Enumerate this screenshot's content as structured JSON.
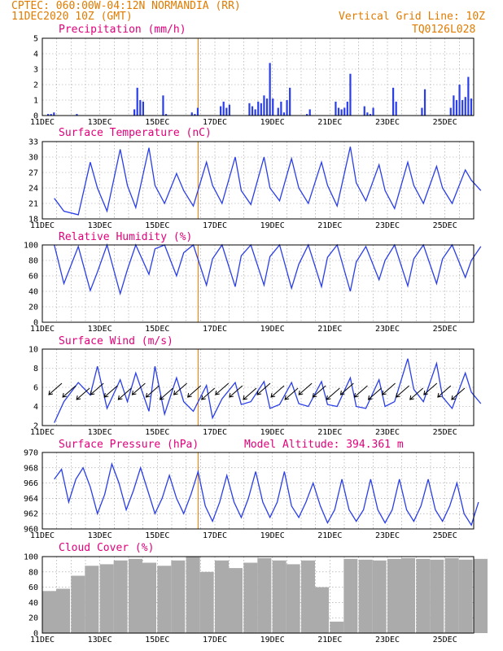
{
  "header": {
    "line1": "CPTEC:  060:00W-04:12N  NORMANDIA (RR)",
    "line2": "11DEC2020 10Z (GMT)",
    "right1": "Vertical Grid Line: 10Z",
    "right2": "TQ0126L028"
  },
  "colors": {
    "header": "#e07b00",
    "panel_title": "#e0007a",
    "series": "#2a3ee8",
    "cloud": "#ababab",
    "vertical_line": "#e07b00"
  },
  "date_labels": [
    "11DEC",
    "13DEC",
    "15DEC",
    "17DEC",
    "19DEC",
    "21DEC",
    "23DEC",
    "25DEC"
  ],
  "chart_data": [
    {
      "type": "bar",
      "title": "Precipitation (mm/h)",
      "ylim": [
        0,
        5
      ],
      "yticks": [
        0,
        1,
        2,
        3,
        4,
        5
      ],
      "grid": true,
      "x": [
        "11DEC",
        "11DEC",
        "11DEC",
        "12DEC",
        "14DEC",
        "14DEC",
        "14DEC",
        "14DEC",
        "15DEC",
        "15DEC",
        "16DEC",
        "16DEC",
        "16DEC",
        "17DEC",
        "17DEC",
        "17DEC",
        "17DEC",
        "18DEC",
        "18DEC",
        "18DEC",
        "18DEC",
        "18DEC",
        "18DEC",
        "18DEC",
        "18DEC",
        "18DEC",
        "19DEC",
        "19DEC",
        "19DEC",
        "19DEC",
        "19DEC",
        "20DEC",
        "20DEC",
        "21DEC",
        "21DEC",
        "21DEC",
        "21DEC",
        "21DEC",
        "21DEC",
        "22DEC",
        "22DEC",
        "22DEC",
        "22DEC",
        "23DEC",
        "23DEC",
        "24DEC",
        "24DEC",
        "25DEC",
        "25DEC",
        "25DEC",
        "25DEC",
        "25DEC",
        "25DEC",
        "25DEC",
        "25DEC"
      ],
      "values": [
        0.1,
        0.1,
        0.2,
        0.1,
        0.4,
        1.8,
        1.0,
        0.9,
        1.3,
        0.1,
        0.2,
        0.1,
        0.5,
        0.6,
        0.9,
        0.5,
        0.7,
        0.8,
        0.6,
        0.4,
        0.9,
        0.8,
        1.3,
        1.1,
        3.4,
        1.1,
        0.5,
        0.9,
        0.2,
        1.0,
        1.8,
        0.1,
        0.4,
        0.9,
        0.5,
        0.4,
        0.5,
        0.9,
        2.7,
        0.6,
        0.2,
        0.1,
        0.5,
        1.8,
        0.9,
        0.5,
        1.7,
        0.5,
        1.3,
        1.0,
        2.0,
        1.0,
        1.2,
        2.5,
        1.1
      ]
    },
    {
      "type": "line",
      "title": "Surface Temperature (nC)",
      "ylim": [
        18,
        33
      ],
      "yticks": [
        18,
        21,
        24,
        27,
        30,
        33
      ],
      "grid": true,
      "x": [
        "11DEC 10Z",
        "11DEC 18Z",
        "12DEC 06Z",
        "12DEC 16Z",
        "12DEC 22Z",
        "13DEC 06Z",
        "13DEC 17Z",
        "13DEC 23Z",
        "14DEC 06Z",
        "14DEC 17Z",
        "14DEC 22Z",
        "15DEC 06Z",
        "15DEC 16Z",
        "15DEC 22Z",
        "16DEC 06Z",
        "16DEC 17Z",
        "16DEC 22Z",
        "17DEC 06Z",
        "17DEC 17Z",
        "17DEC 22Z",
        "18DEC 06Z",
        "18DEC 17Z",
        "18DEC 22Z",
        "19DEC 06Z",
        "19DEC 16Z",
        "19DEC 22Z",
        "20DEC 06Z",
        "20DEC 17Z",
        "20DEC 22Z",
        "21DEC 06Z",
        "21DEC 17Z",
        "21DEC 22Z",
        "22DEC 06Z",
        "22DEC 17Z",
        "22DEC 22Z",
        "23DEC 06Z",
        "23DEC 17Z",
        "23DEC 22Z",
        "24DEC 06Z",
        "24DEC 17Z",
        "24DEC 22Z",
        "25DEC 06Z",
        "25DEC 17Z",
        "25DEC 22Z",
        "26DEC 06Z"
      ],
      "values": [
        22,
        19.5,
        18.8,
        29,
        24,
        19.5,
        31.5,
        24.5,
        20.2,
        31.8,
        24.5,
        21,
        26.8,
        23.5,
        20.5,
        29,
        24.5,
        21,
        30,
        23.5,
        20.8,
        30,
        24,
        21.5,
        29.7,
        24,
        21,
        29,
        24.5,
        20.5,
        32,
        25,
        21.5,
        28.5,
        23.5,
        20,
        29,
        24.5,
        21,
        28.2,
        24,
        21,
        27.5,
        25.5,
        23.5
      ]
    },
    {
      "type": "line",
      "title": "Relative Humidity (%)",
      "ylim": [
        0,
        100
      ],
      "yticks": [
        0,
        20,
        40,
        60,
        80,
        100
      ],
      "grid": true,
      "x": [
        "11DEC 10Z",
        "11DEC 18Z",
        "12DEC 06Z",
        "12DEC 16Z",
        "12DEC 22Z",
        "13DEC 06Z",
        "13DEC 17Z",
        "13DEC 23Z",
        "14DEC 06Z",
        "14DEC 17Z",
        "14DEC 22Z",
        "15DEC 06Z",
        "15DEC 16Z",
        "15DEC 22Z",
        "16DEC 06Z",
        "16DEC 17Z",
        "16DEC 22Z",
        "17DEC 06Z",
        "17DEC 17Z",
        "17DEC 22Z",
        "18DEC 06Z",
        "18DEC 17Z",
        "18DEC 22Z",
        "19DEC 06Z",
        "19DEC 16Z",
        "19DEC 22Z",
        "20DEC 06Z",
        "20DEC 17Z",
        "20DEC 22Z",
        "21DEC 06Z",
        "21DEC 17Z",
        "21DEC 22Z",
        "22DEC 06Z",
        "22DEC 17Z",
        "22DEC 22Z",
        "23DEC 06Z",
        "23DEC 17Z",
        "23DEC 22Z",
        "24DEC 06Z",
        "24DEC 17Z",
        "24DEC 22Z",
        "25DEC 06Z",
        "25DEC 17Z",
        "25DEC 22Z",
        "26DEC 06Z"
      ],
      "values": [
        100,
        50,
        98,
        41,
        65,
        100,
        37,
        68,
        100,
        62,
        95,
        100,
        60,
        90,
        100,
        48,
        82,
        100,
        46,
        86,
        100,
        48,
        85,
        100,
        44,
        75,
        100,
        46,
        84,
        100,
        40,
        78,
        98,
        55,
        80,
        100,
        47,
        82,
        100,
        50,
        82,
        100,
        58,
        80,
        98
      ]
    },
    {
      "type": "line",
      "title": "Surface Wind (m/s)",
      "ylim": [
        2,
        10
      ],
      "yticks": [
        2,
        4,
        6,
        8,
        10
      ],
      "grid": true,
      "x": [
        "11DEC 10Z",
        "11DEC 18Z",
        "12DEC 06Z",
        "12DEC 16Z",
        "12DEC 22Z",
        "13DEC 06Z",
        "13DEC 17Z",
        "13DEC 23Z",
        "14DEC 06Z",
        "14DEC 17Z",
        "14DEC 22Z",
        "15DEC 06Z",
        "15DEC 16Z",
        "15DEC 22Z",
        "16DEC 06Z",
        "16DEC 17Z",
        "16DEC 22Z",
        "17DEC 06Z",
        "17DEC 17Z",
        "17DEC 22Z",
        "18DEC 06Z",
        "18DEC 17Z",
        "18DEC 22Z",
        "19DEC 06Z",
        "19DEC 16Z",
        "19DEC 22Z",
        "20DEC 06Z",
        "20DEC 17Z",
        "20DEC 22Z",
        "21DEC 06Z",
        "21DEC 17Z",
        "21DEC 22Z",
        "22DEC 06Z",
        "22DEC 17Z",
        "22DEC 22Z",
        "23DEC 06Z",
        "23DEC 17Z",
        "23DEC 22Z",
        "24DEC 06Z",
        "24DEC 17Z",
        "24DEC 22Z",
        "25DEC 06Z",
        "25DEC 17Z",
        "25DEC 22Z",
        "26DEC 06Z"
      ],
      "values": [
        2.3,
        4.5,
        6.5,
        5.2,
        8.2,
        3.8,
        6.8,
        4.5,
        7.5,
        3.5,
        8.2,
        3.2,
        7.0,
        4.5,
        3.5,
        6.2,
        2.8,
        4.8,
        6.5,
        4.2,
        4.5,
        6.6,
        3.8,
        4.2,
        6.5,
        4.3,
        4.0,
        6.6,
        4.2,
        4.0,
        7.0,
        4.0,
        3.8,
        6.8,
        4.0,
        4.5,
        9.0,
        5.8,
        4.5,
        8.5,
        5.0,
        3.8,
        7.5,
        5.5,
        4.3
      ],
      "wind_arrows": {
        "count": 30,
        "direction": "from northeast"
      }
    },
    {
      "type": "line",
      "title": "Surface Pressure (hPa)",
      "ylim": [
        960,
        970
      ],
      "yticks": [
        960,
        962,
        964,
        966,
        968,
        970
      ],
      "grid": true,
      "annotation": "Model Altitude: 394.361 m",
      "x": [
        "11DEC 10Z",
        "11DEC 16Z",
        "11DEC 22Z",
        "12DEC 04Z",
        "12DEC 10Z",
        "12DEC 16Z",
        "12DEC 22Z",
        "13DEC 04Z",
        "13DEC 10Z",
        "13DEC 16Z",
        "13DEC 22Z",
        "14DEC 04Z",
        "14DEC 10Z",
        "14DEC 16Z",
        "14DEC 22Z",
        "15DEC 04Z",
        "15DEC 10Z",
        "15DEC 16Z",
        "15DEC 22Z",
        "16DEC 04Z",
        "16DEC 10Z",
        "16DEC 16Z",
        "16DEC 22Z",
        "17DEC 04Z",
        "17DEC 10Z",
        "17DEC 16Z",
        "17DEC 22Z",
        "18DEC 04Z",
        "18DEC 10Z",
        "18DEC 16Z",
        "18DEC 22Z",
        "19DEC 04Z",
        "19DEC 10Z",
        "19DEC 16Z",
        "19DEC 22Z",
        "20DEC 04Z",
        "20DEC 10Z",
        "20DEC 16Z",
        "20DEC 22Z",
        "21DEC 04Z",
        "21DEC 10Z",
        "21DEC 16Z",
        "21DEC 22Z",
        "22DEC 04Z",
        "22DEC 10Z",
        "22DEC 16Z",
        "22DEC 22Z",
        "23DEC 04Z",
        "23DEC 10Z",
        "23DEC 16Z",
        "23DEC 22Z",
        "24DEC 04Z",
        "24DEC 10Z",
        "24DEC 16Z",
        "24DEC 22Z",
        "25DEC 04Z",
        "25DEC 10Z",
        "25DEC 16Z",
        "25DEC 22Z",
        "26DEC 04Z"
      ],
      "values": [
        966.5,
        967.8,
        963.5,
        966.5,
        968,
        965.5,
        962,
        964.5,
        968.5,
        966,
        962.5,
        965,
        968,
        965,
        962,
        964,
        967,
        964,
        962,
        964.5,
        967.5,
        963,
        961,
        963.5,
        967,
        963.5,
        961.5,
        964,
        967.5,
        963.5,
        961.5,
        963.5,
        967.5,
        963,
        961.5,
        963.5,
        966,
        963,
        960.8,
        962.5,
        966.5,
        962.5,
        961,
        962.5,
        966.5,
        962.5,
        960.8,
        962.5,
        966.5,
        962.5,
        961,
        963,
        966.5,
        962.5,
        961,
        963,
        966,
        962,
        960.5,
        963.5
      ]
    },
    {
      "type": "bar",
      "title": "Cloud Cover (%)",
      "ylim": [
        0,
        100
      ],
      "yticks": [
        0,
        20,
        40,
        60,
        80,
        100
      ],
      "grid": true,
      "x": [
        "11DEC",
        "11DEC",
        "12DEC",
        "12DEC",
        "13DEC",
        "13DEC",
        "14DEC",
        "14DEC",
        "15DEC",
        "15DEC",
        "16DEC",
        "16DEC",
        "17DEC",
        "17DEC",
        "18DEC",
        "18DEC",
        "19DEC",
        "19DEC",
        "20DEC",
        "20DEC",
        "21DEC",
        "21DEC",
        "22DEC",
        "22DEC",
        "23DEC",
        "23DEC",
        "24DEC",
        "24DEC",
        "25DEC",
        "25DEC",
        "26DEC"
      ],
      "values": [
        55,
        58,
        75,
        88,
        90,
        95,
        97,
        92,
        88,
        95,
        100,
        80,
        95,
        85,
        92,
        98,
        95,
        90,
        95,
        60,
        15,
        97,
        96,
        95,
        97,
        98,
        97,
        96,
        98,
        96,
        97
      ]
    }
  ]
}
